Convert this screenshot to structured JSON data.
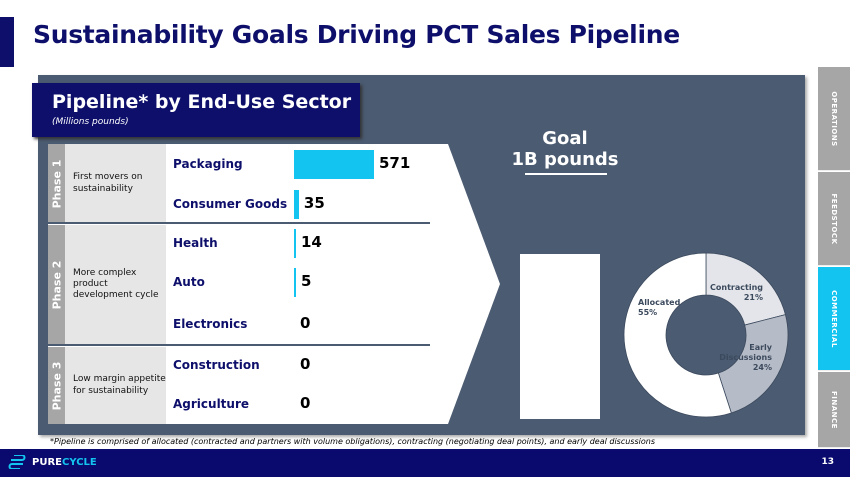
{
  "title": "Sustainability Goals Driving PCT Sales Pipeline",
  "header": {
    "title": "Pipeline* by End-Use Sector",
    "subtitle": "(Millions pounds)"
  },
  "phases": [
    {
      "label": "Phase 1",
      "description": "First movers on sustainability"
    },
    {
      "label": "Phase 2",
      "description": "More complex product development cycle"
    },
    {
      "label": "Phase 3",
      "description": "Low margin appetite for sustainability"
    }
  ],
  "chart_data": [
    {
      "type": "bar",
      "title": "Pipeline* by End-Use Sector",
      "ylabel": "Millions pounds",
      "categories": [
        "Packaging",
        "Consumer Goods",
        "Health",
        "Auto",
        "Electronics",
        "Construction",
        "Agriculture"
      ],
      "values": [
        571,
        35,
        14,
        5,
        0,
        0,
        0
      ]
    },
    {
      "type": "pie",
      "categories": [
        "Allocated",
        "Contracting",
        "Early Discussions"
      ],
      "values": [
        55,
        21,
        24
      ],
      "labels": [
        "55%",
        "21%",
        "24%"
      ],
      "colors": [
        "#ffffff",
        "#e3e5ea",
        "#b6bcc7"
      ]
    }
  ],
  "goal": {
    "line1": "Goal",
    "line2": "1B pounds"
  },
  "footnote": "*Pipeline is comprised of allocated (contracted and partners with volume obligations), contracting (negotiating deal points), and early deal discussions",
  "nav": [
    {
      "label": "OPERATIONS",
      "active": false
    },
    {
      "label": "FEEDSTOCK",
      "active": false
    },
    {
      "label": "COMMERCIAL",
      "active": true
    },
    {
      "label": "FINANCE",
      "active": false
    }
  ],
  "logo": {
    "part1": "PURE",
    "part2": "CYCLE"
  },
  "page_number": "13",
  "colors": {
    "navy": "#0d0f6b",
    "accent": "#12c4ef",
    "panel": "#4b5b71"
  }
}
